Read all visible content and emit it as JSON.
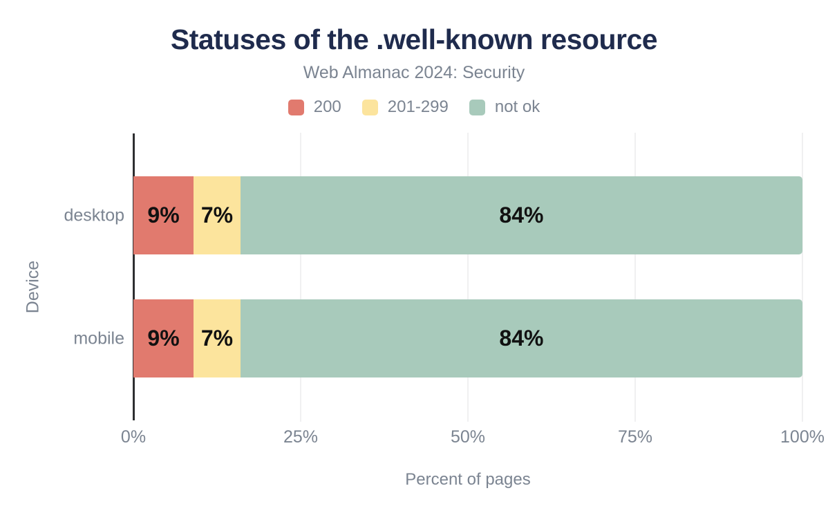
{
  "chart_data": {
    "type": "bar",
    "orientation": "horizontal",
    "stacked": true,
    "title": "Statuses of the .well-known resource",
    "subtitle": "Web Almanac 2024: Security",
    "xlabel": "Percent of pages",
    "ylabel": "Device",
    "categories": [
      "desktop",
      "mobile"
    ],
    "series": [
      {
        "name": "200",
        "color": "#e17a6e",
        "values": [
          9,
          9
        ]
      },
      {
        "name": "201-299",
        "color": "#fce49d",
        "values": [
          7,
          7
        ]
      },
      {
        "name": "not ok",
        "color": "#a8cabb",
        "values": [
          84,
          84
        ]
      }
    ],
    "value_label_format": "{v}%",
    "xlim": [
      0,
      100
    ],
    "x_ticks": [
      "0%",
      "25%",
      "50%",
      "75%",
      "100%"
    ],
    "grid": "vertical",
    "legend_position": "top"
  },
  "colors": {
    "background": "#ffffff",
    "title": "#1f2b4d",
    "muted_text": "#7b8491",
    "bar_label": "#111111",
    "axis_line": "#2e2f31",
    "gridline": "#f0f0f1"
  }
}
